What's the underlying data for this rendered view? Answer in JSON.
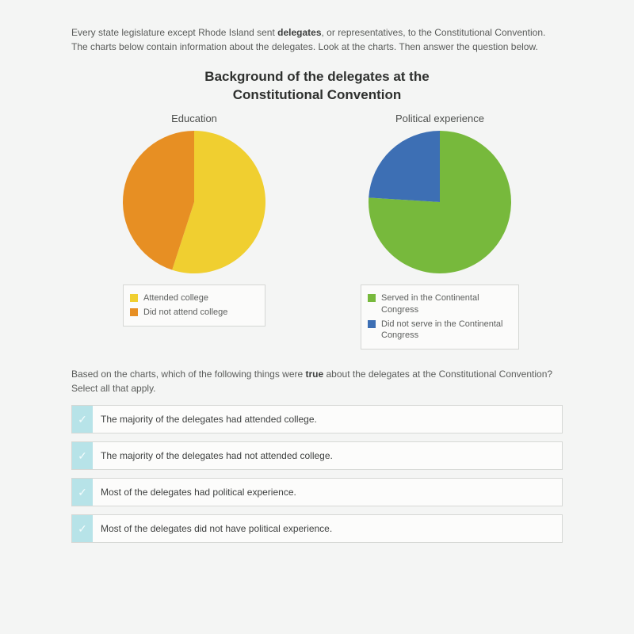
{
  "intro": {
    "pre": "Every state legislature except Rhode Island sent ",
    "bold": "delegates",
    "post": ", or representatives, to the Constitutional Convention. The charts below contain information about the delegates. Look at the charts. Then answer the question below."
  },
  "charts_title_l1": "Background of the delegates at the",
  "charts_title_l2": "Constitutional Convention",
  "chart_edu": {
    "subtitle": "Education",
    "type": "pie",
    "diameter": 180,
    "slices": [
      {
        "label": "Attended college",
        "value": 55,
        "color": "#f0cf30"
      },
      {
        "label": "Did not attend college",
        "value": 45,
        "color": "#e78f23"
      }
    ]
  },
  "chart_pol": {
    "subtitle": "Political experience",
    "type": "pie",
    "diameter": 180,
    "slices": [
      {
        "label": "Served in the Continental Congress",
        "value": 76,
        "color": "#77b93c"
      },
      {
        "label": "Did not serve in the Continental Congress",
        "value": 24,
        "color": "#3d6fb4"
      }
    ]
  },
  "question": {
    "pre": "Based on the charts, which of the following things were ",
    "bold": "true",
    "post": " about the delegates at the Constitutional Convention? Select all that apply."
  },
  "answers": [
    "The majority of the delegates had attended college.",
    "The majority of the delegates had not attended college.",
    "Most of the delegates had political experience.",
    "Most of the delegates did not have political experience."
  ],
  "colors": {
    "page_bg": "#f4f5f4",
    "checkbox_bg": "#b7e3e8",
    "border": "#d6d8d5"
  }
}
